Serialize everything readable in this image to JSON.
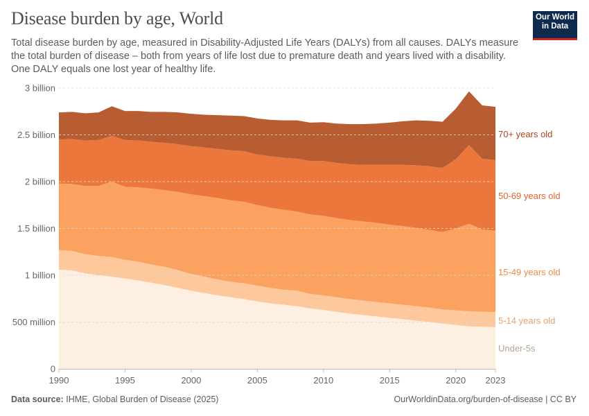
{
  "header": {
    "title": "Disease burden by age, World",
    "subtitle": "Total disease burden by age, measured in Disability-Adjusted Life Years (DALYs) from all causes. DALYs measure the total burden of disease – both from years of life lost due to premature death and years lived with a disability. One DALY equals one lost year of healthy life.",
    "logo_line1": "Our World",
    "logo_line2": "in Data"
  },
  "footer": {
    "source_label": "Data source:",
    "source_text": "IHME, Global Burden of Disease (2025)",
    "right_text": "OurWorldinData.org/burden-of-disease | CC BY"
  },
  "chart_data": {
    "type": "area",
    "stacked": true,
    "title": "Disease burden by age, World",
    "xlabel": "",
    "ylabel": "",
    "unit": "DALYs (millions)",
    "ylim": [
      0,
      3000
    ],
    "xlim": [
      1990,
      2023
    ],
    "grid": true,
    "legend": "right (inline labels)",
    "y_ticks": [
      {
        "value": 0,
        "label": "0"
      },
      {
        "value": 500,
        "label": "500 million"
      },
      {
        "value": 1000,
        "label": "1 billion"
      },
      {
        "value": 1500,
        "label": "1.5 billion"
      },
      {
        "value": 2000,
        "label": "2 billion"
      },
      {
        "value": 2500,
        "label": "2.5 billion"
      },
      {
        "value": 3000,
        "label": "3 billion"
      }
    ],
    "x_ticks": [
      "1990",
      "1995",
      "2000",
      "2005",
      "2010",
      "2015",
      "2020",
      "2023"
    ],
    "x": [
      1990,
      1991,
      1992,
      1993,
      1994,
      1995,
      1996,
      1997,
      1998,
      1999,
      2000,
      2001,
      2002,
      2003,
      2004,
      2005,
      2006,
      2007,
      2008,
      2009,
      2010,
      2011,
      2012,
      2013,
      2014,
      2015,
      2016,
      2017,
      2018,
      2019,
      2020,
      2021,
      2022,
      2023
    ],
    "series": [
      {
        "name": "Under-5s",
        "color": "#fdf0e3",
        "label_color": "#b3a497",
        "values": [
          1060,
          1050,
          1020,
          1000,
          985,
          965,
          945,
          920,
          895,
          865,
          835,
          810,
          785,
          765,
          745,
          720,
          700,
          685,
          670,
          645,
          630,
          610,
          590,
          575,
          560,
          545,
          530,
          515,
          500,
          485,
          470,
          455,
          450,
          445
        ]
      },
      {
        "name": "5-14 years old",
        "color": "#fcc89c",
        "label_color": "#e3a271",
        "values": [
          210,
          210,
          205,
          205,
          210,
          200,
          200,
          195,
          195,
          190,
          180,
          175,
          170,
          165,
          170,
          170,
          165,
          160,
          165,
          155,
          155,
          155,
          155,
          155,
          155,
          155,
          155,
          155,
          155,
          150,
          155,
          160,
          160,
          160
        ]
      },
      {
        "name": "15-49 years old",
        "color": "#fba261",
        "label_color": "#ef8b45",
        "values": [
          710,
          715,
          730,
          750,
          805,
          780,
          795,
          810,
          820,
          835,
          850,
          860,
          870,
          870,
          870,
          860,
          855,
          855,
          845,
          850,
          850,
          845,
          845,
          845,
          845,
          840,
          840,
          835,
          830,
          825,
          875,
          935,
          880,
          870
        ]
      },
      {
        "name": "50-69 years old",
        "color": "#eb773c",
        "label_color": "#e1652a",
        "values": [
          470,
          480,
          485,
          490,
          490,
          500,
          500,
          500,
          505,
          510,
          515,
          520,
          525,
          535,
          540,
          540,
          550,
          555,
          565,
          570,
          585,
          590,
          595,
          605,
          620,
          640,
          655,
          670,
          680,
          685,
          740,
          840,
          755,
          755
        ]
      },
      {
        "name": "70+ years old",
        "color": "#b85c32",
        "label_color": "#a9461c",
        "values": [
          290,
          290,
          290,
          295,
          315,
          310,
          315,
          320,
          330,
          340,
          345,
          350,
          360,
          370,
          375,
          385,
          390,
          400,
          410,
          410,
          415,
          420,
          430,
          435,
          440,
          450,
          465,
          480,
          485,
          495,
          540,
          575,
          570,
          570
        ]
      }
    ]
  }
}
